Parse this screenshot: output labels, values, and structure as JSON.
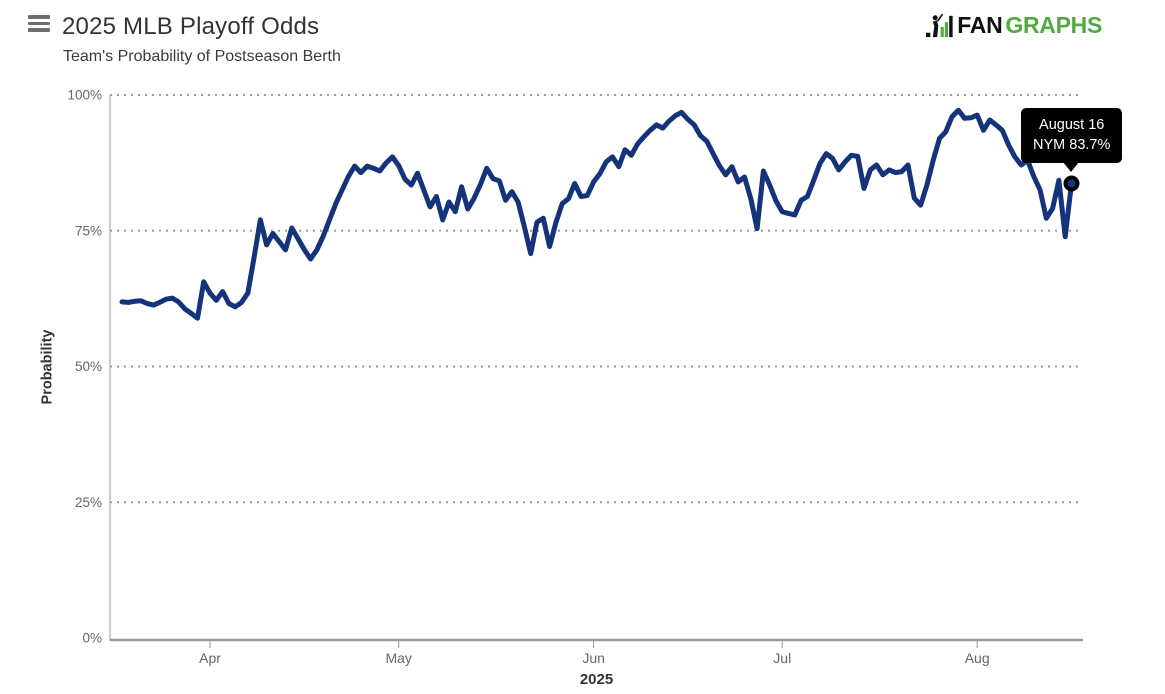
{
  "header": {
    "title": "2025 MLB Playoff Odds",
    "subtitle": "Team's Probability of Postseason Berth",
    "logo": {
      "fan": "FAN",
      "graphs": "GRAPHS"
    }
  },
  "tooltip": {
    "line1": "August 16",
    "line2": "NYM 83.7%"
  },
  "colors": {
    "line": "#14337a",
    "logo_green": "#53a93f",
    "tooltip_bg": "#000000",
    "grid": "#9e9e9e",
    "axis": "#999999",
    "text_dark": "#333333",
    "text_gray": "#666666"
  },
  "chart_data": {
    "type": "line",
    "title": "2025 MLB Playoff Odds",
    "subtitle": "Team's Probability of Postseason Berth",
    "xlabel": "2025",
    "ylabel": "Probability",
    "ylim": [
      0,
      100
    ],
    "grid": "dotted horizontal",
    "legend": "none",
    "start_date": "2025-03-18",
    "end_date": "2025-08-16",
    "yticks": [
      {
        "label": "0%",
        "value": 0
      },
      {
        "label": "25%",
        "value": 25
      },
      {
        "label": "50%",
        "value": 50
      },
      {
        "label": "75%",
        "value": 75
      },
      {
        "label": "100%",
        "value": 100
      }
    ],
    "xticks": [
      {
        "label": "Apr",
        "day": 14
      },
      {
        "label": "May",
        "day": 44
      },
      {
        "label": "Jun",
        "day": 75
      },
      {
        "label": "Jul",
        "day": 105
      },
      {
        "label": "Aug",
        "day": 136
      }
    ],
    "series": [
      {
        "name": "NYM",
        "color": "#14337a",
        "unit": "%",
        "values": [
          61.9,
          61.8,
          62.0,
          62.1,
          61.6,
          61.3,
          61.8,
          62.4,
          62.6,
          61.9,
          60.6,
          59.8,
          58.9,
          65.6,
          63.5,
          62.2,
          63.8,
          61.6,
          61.0,
          61.8,
          63.5,
          70.0,
          77.0,
          72.4,
          74.5,
          73.0,
          71.5,
          75.5,
          73.5,
          71.5,
          69.8,
          71.5,
          74.0,
          77.0,
          80.0,
          82.5,
          85.0,
          86.9,
          85.7,
          86.9,
          86.5,
          86.0,
          87.5,
          88.6,
          87.0,
          84.5,
          83.4,
          85.6,
          82.5,
          79.4,
          81.3,
          77.0,
          80.3,
          78.5,
          83.1,
          79.0,
          81.0,
          83.5,
          86.5,
          84.6,
          84.2,
          80.6,
          82.2,
          80.3,
          75.7,
          70.8,
          76.6,
          77.3,
          72.1,
          76.5,
          80.0,
          80.9,
          83.7,
          81.3,
          81.5,
          84.0,
          85.5,
          87.7,
          88.6,
          86.8,
          89.9,
          88.9,
          91.0,
          92.3,
          93.5,
          94.5,
          93.9,
          95.2,
          96.2,
          96.8,
          95.5,
          94.5,
          92.5,
          91.5,
          89.2,
          87.0,
          85.3,
          86.8,
          84.0,
          84.9,
          80.9,
          75.4,
          86.0,
          83.4,
          80.5,
          78.5,
          78.2,
          77.9,
          80.6,
          81.3,
          84.3,
          87.4,
          89.2,
          88.3,
          86.2,
          87.7,
          88.9,
          88.7,
          82.8,
          86.2,
          87.1,
          85.3,
          86.2,
          85.7,
          85.9,
          87.1,
          81.0,
          79.7,
          83.4,
          88.0,
          92.0,
          93.2,
          96.0,
          97.2,
          95.7,
          95.8,
          96.3,
          93.5,
          95.4,
          94.5,
          93.5,
          90.8,
          88.6,
          87.1,
          88.0,
          85.0,
          82.5,
          77.3,
          79.1,
          84.3,
          73.9,
          83.7
        ]
      }
    ],
    "highlight_point": {
      "date": "August 16",
      "team": "NYM",
      "value": 83.7
    }
  }
}
